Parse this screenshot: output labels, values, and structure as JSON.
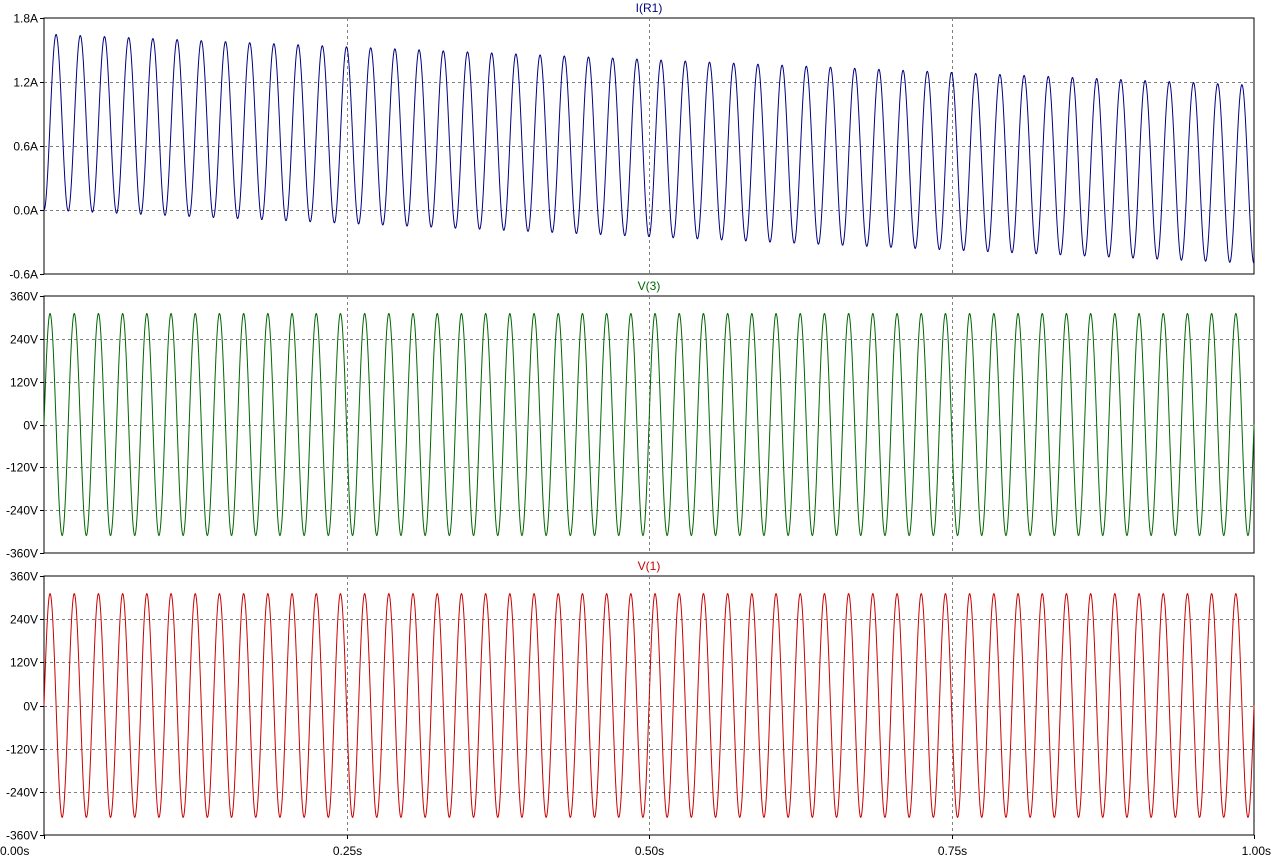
{
  "chart_data": {
    "type": "line",
    "x_axis": {
      "label": "",
      "range": [
        0,
        1.0
      ],
      "unit": "s",
      "ticks": [
        0,
        0.25,
        0.5,
        0.75,
        1.0
      ],
      "tick_labels": [
        "0.00s",
        "0.25s",
        "0.50s",
        "0.75s",
        "1.00s"
      ],
      "grid": true
    },
    "panes": [
      {
        "title": "I(R1)",
        "color": "#000080",
        "y_range": [
          -0.6,
          1.8
        ],
        "y_ticks": [
          1.8,
          1.2,
          0.6,
          0.0,
          -0.6
        ],
        "y_tick_labels": [
          "1.8A",
          "1.2A",
          "0.6A",
          "0.0A",
          "-0.6A"
        ],
        "grid": true,
        "series": {
          "frequency_hz": 50,
          "cycles": 50,
          "peak_start": 1.65,
          "peak_end": 1.17,
          "trough_start": 0.0,
          "trough_end": -0.5,
          "phase_at_start": "rising from 0.0A",
          "end_value": -0.5
        }
      },
      {
        "title": "V(3)",
        "color": "#006600",
        "y_range": [
          -360,
          360
        ],
        "y_ticks": [
          360,
          240,
          120,
          0,
          -120,
          -240,
          -360
        ],
        "y_tick_labels": [
          "360V",
          "240V",
          "120V",
          "0V",
          "-120V",
          "-240V",
          "-360V"
        ],
        "grid": true,
        "series": {
          "frequency_hz": 50,
          "cycles": 50,
          "amplitude": 311,
          "offset": 0,
          "phase_at_start": "rising from 0V"
        }
      },
      {
        "title": "V(1)",
        "color": "#cc0000",
        "y_range": [
          -360,
          360
        ],
        "y_ticks": [
          360,
          240,
          120,
          0,
          -120,
          -240,
          -360
        ],
        "y_tick_labels": [
          "360V",
          "240V",
          "120V",
          "0V",
          "-120V",
          "-240V",
          "-360V"
        ],
        "grid": true,
        "series": {
          "frequency_hz": 50,
          "cycles": 50,
          "amplitude": 311,
          "offset": 0,
          "phase_at_start": "rising from 0V"
        }
      }
    ]
  }
}
